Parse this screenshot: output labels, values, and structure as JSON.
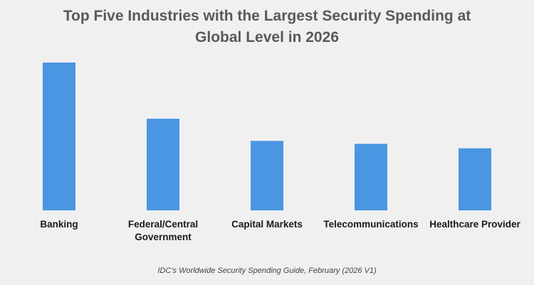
{
  "chart_data": {
    "type": "bar",
    "title_lines": [
      "Top Five Industries with the Largest Security Spending at",
      "Global Level in 2026"
    ],
    "categories": [
      "Banking",
      "Federal/Central Government",
      "Capital Markets",
      "Telecommunications",
      "Healthcare Provider"
    ],
    "category_label_lines": [
      [
        "Banking"
      ],
      [
        "Federal/Central",
        "Government"
      ],
      [
        "Capital Markets"
      ],
      [
        "Telecommunications"
      ],
      [
        "Healthcare Provider"
      ]
    ],
    "values": [
      100,
      62,
      47,
      45,
      42
    ],
    "ylim": [
      0,
      100
    ],
    "bar_color": "#4a96e3",
    "grid": false,
    "legend": "none",
    "xlabel": "",
    "ylabel": ""
  },
  "source_note": "IDC’s Worldwide Security Spending Guide, February (2026 V1)",
  "colors": {
    "background": "#f0f0f0",
    "title": "#595959",
    "bar": "#4a96e3",
    "label": "#1a1a1a"
  }
}
